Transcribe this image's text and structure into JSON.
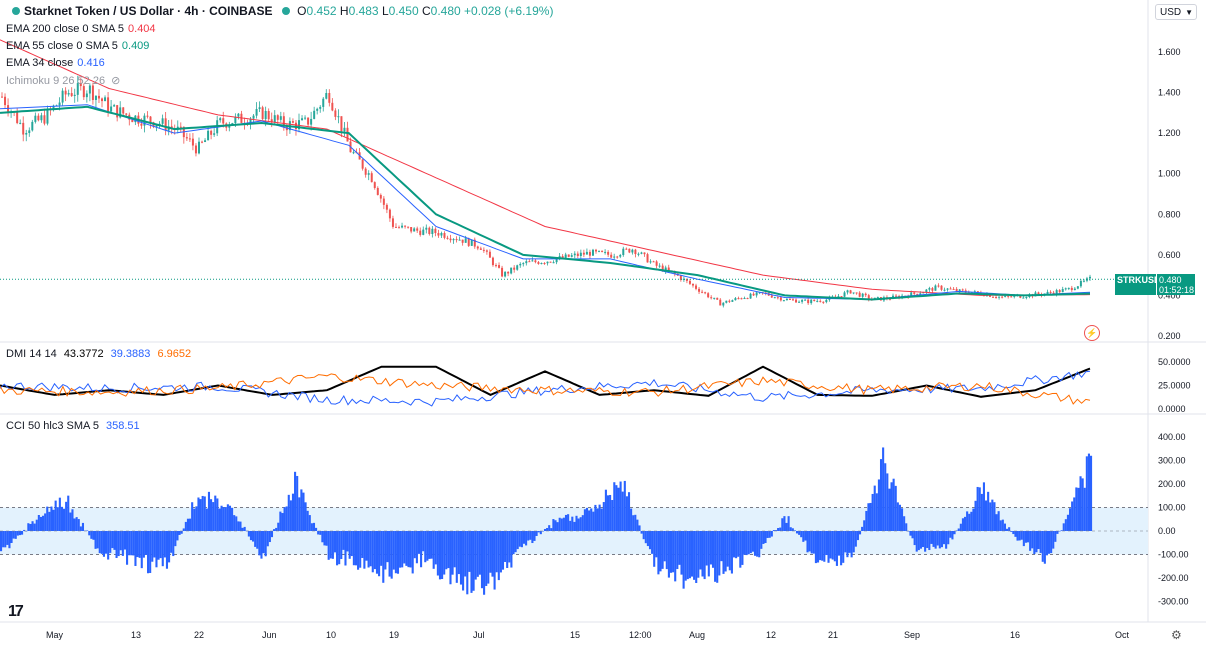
{
  "header": {
    "symbol": "Starknet Token / US Dollar · 4h · COINBASE",
    "o_label": "O",
    "o": "0.452",
    "h_label": "H",
    "h": "0.483",
    "l_label": "L",
    "l": "0.450",
    "c_label": "C",
    "c": "0.480",
    "change": "+0.028 (+6.19%)"
  },
  "indicators": {
    "ema200": {
      "label": "EMA 200 close 0 SMA 5",
      "value": "0.404"
    },
    "ema55": {
      "label": "EMA 55 close 0 SMA 5",
      "value": "0.409"
    },
    "ema34": {
      "label": "EMA 34 close",
      "value": "0.416"
    },
    "ichimoku": {
      "label": "Ichimoku 9 26 52 26"
    },
    "dmi": {
      "label": "DMI 14 14",
      "adx": "43.3772",
      "plus": "39.3883",
      "minus": "6.9652"
    },
    "cci": {
      "label": "CCI 50 hlc3 SMA 5",
      "value": "358.51"
    }
  },
  "currency": "USD",
  "last_price": {
    "symbol": "STRKUSD",
    "price": "0.480",
    "countdown": "01:52:18"
  },
  "colors": {
    "up": "#26a69a",
    "down": "#ef5350",
    "ema200": "#f23645",
    "ema55": "#089981",
    "ema34": "#2962ff",
    "adx": "#000000",
    "plus_di": "#2962ff",
    "minus_di": "#ff6d00",
    "cci": "#2962ff",
    "cci_band": "#e3f2fd"
  },
  "chart_data": [
    {
      "type": "candlestick",
      "pane": "price",
      "y_ticks": [
        "1.600",
        "1.400",
        "1.200",
        "1.000",
        "0.800",
        "0.600",
        "0.400",
        "0.200"
      ],
      "ylim": [
        0.2,
        1.7
      ],
      "x_ticks": [
        "May",
        "13",
        "22",
        "Jun",
        "10",
        "19",
        "Jul",
        "15",
        "12:00",
        "Aug",
        "12",
        "21",
        "Sep",
        "16",
        "Oct"
      ],
      "close_path": {
        "t": [
          0,
          0.02,
          0.04,
          0.06,
          0.08,
          0.1,
          0.12,
          0.14,
          0.16,
          0.18,
          0.2,
          0.22,
          0.24,
          0.26,
          0.28,
          0.3,
          0.32,
          0.34,
          0.36,
          0.38,
          0.4,
          0.42,
          0.44,
          0.46,
          0.48,
          0.5,
          0.52,
          0.54,
          0.56,
          0.58,
          0.6,
          0.62,
          0.64,
          0.66,
          0.68,
          0.7,
          0.72,
          0.74,
          0.76,
          0.78,
          0.8,
          0.82,
          0.84,
          0.86,
          0.88,
          0.9,
          0.92,
          0.94,
          0.96,
          0.98,
          1.0
        ],
        "v": [
          1.38,
          1.22,
          1.28,
          1.4,
          1.42,
          1.32,
          1.28,
          1.26,
          1.22,
          1.12,
          1.25,
          1.27,
          1.3,
          1.24,
          1.25,
          1.4,
          1.12,
          0.98,
          0.74,
          0.72,
          0.71,
          0.68,
          0.64,
          0.5,
          0.56,
          0.57,
          0.59,
          0.61,
          0.6,
          0.63,
          0.55,
          0.5,
          0.43,
          0.36,
          0.39,
          0.41,
          0.38,
          0.37,
          0.38,
          0.42,
          0.38,
          0.39,
          0.41,
          0.44,
          0.42,
          0.41,
          0.39,
          0.4,
          0.41,
          0.43,
          0.48
        ]
      },
      "ema200_path": {
        "t": [
          0,
          0.1,
          0.2,
          0.3,
          0.4,
          0.5,
          0.6,
          0.7,
          0.8,
          0.9,
          1.0
        ],
        "v": [
          1.66,
          1.42,
          1.29,
          1.22,
          0.98,
          0.74,
          0.62,
          0.5,
          0.43,
          0.4,
          0.404
        ]
      },
      "ema55_path": {
        "t": [
          0,
          0.08,
          0.16,
          0.24,
          0.32,
          0.4,
          0.48,
          0.56,
          0.64,
          0.72,
          0.8,
          0.88,
          0.94,
          1.0
        ],
        "v": [
          1.3,
          1.33,
          1.22,
          1.25,
          1.2,
          0.8,
          0.6,
          0.56,
          0.5,
          0.4,
          0.38,
          0.41,
          0.4,
          0.409
        ]
      },
      "ema34_path": {
        "t": [
          0,
          0.08,
          0.16,
          0.24,
          0.32,
          0.4,
          0.48,
          0.56,
          0.64,
          0.72,
          0.8,
          0.88,
          0.94,
          1.0
        ],
        "v": [
          1.32,
          1.34,
          1.2,
          1.26,
          1.14,
          0.74,
          0.58,
          0.58,
          0.48,
          0.39,
          0.38,
          0.42,
          0.4,
          0.416
        ]
      }
    },
    {
      "type": "line",
      "pane": "dmi",
      "y_ticks": [
        "50.0000",
        "25.0000",
        "0.0000"
      ],
      "ylim": [
        0,
        60
      ],
      "series": [
        {
          "name": "ADX",
          "t": [
            0,
            0.05,
            0.1,
            0.15,
            0.2,
            0.25,
            0.3,
            0.35,
            0.4,
            0.45,
            0.5,
            0.55,
            0.6,
            0.65,
            0.7,
            0.75,
            0.8,
            0.85,
            0.9,
            0.95,
            1.0
          ],
          "v": [
            25,
            15,
            20,
            15,
            25,
            15,
            20,
            45,
            45,
            15,
            40,
            15,
            20,
            14,
            45,
            15,
            14,
            25,
            13,
            20,
            43
          ]
        },
        {
          "name": "+DI",
          "t": [
            0,
            0.1,
            0.2,
            0.3,
            0.4,
            0.5,
            0.6,
            0.7,
            0.8,
            0.9,
            1.0
          ],
          "v": [
            25,
            22,
            24,
            10,
            8,
            20,
            28,
            12,
            20,
            22,
            39
          ]
        },
        {
          "name": "-DI",
          "t": [
            0,
            0.1,
            0.2,
            0.3,
            0.4,
            0.5,
            0.6,
            0.7,
            0.8,
            0.9,
            1.0
          ],
          "v": [
            20,
            18,
            22,
            35,
            25,
            20,
            18,
            30,
            20,
            25,
            7
          ]
        }
      ]
    },
    {
      "type": "bar",
      "pane": "cci",
      "y_ticks": [
        "400.00",
        "300.00",
        "200.00",
        "100.00",
        "0.00",
        "-100.00",
        "-200.00",
        "-300.00"
      ],
      "ylim": [
        -350,
        420
      ],
      "bands": [
        100,
        -100
      ],
      "envelope": {
        "t": [
          0,
          0.03,
          0.06,
          0.09,
          0.12,
          0.15,
          0.18,
          0.21,
          0.24,
          0.27,
          0.3,
          0.33,
          0.36,
          0.39,
          0.42,
          0.45,
          0.48,
          0.51,
          0.54,
          0.57,
          0.6,
          0.63,
          0.66,
          0.69,
          0.72,
          0.75,
          0.78,
          0.81,
          0.84,
          0.87,
          0.9,
          0.93,
          0.96,
          0.98,
          1.0
        ],
        "v": [
          -120,
          60,
          170,
          -110,
          -150,
          -200,
          180,
          130,
          -140,
          260,
          -120,
          -180,
          -240,
          -150,
          -280,
          -290,
          -80,
          60,
          100,
          250,
          -180,
          -260,
          -220,
          -150,
          80,
          -170,
          -150,
          380,
          -120,
          -60,
          230,
          -40,
          -150,
          100,
          358
        ]
      }
    }
  ]
}
